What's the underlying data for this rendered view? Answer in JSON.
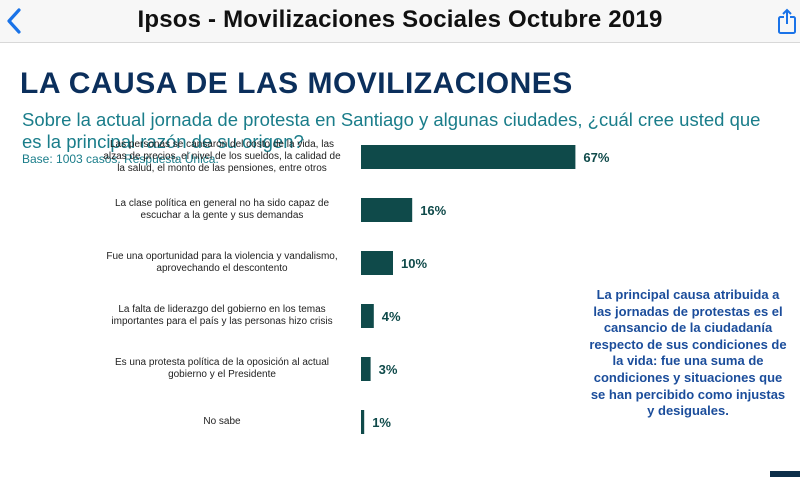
{
  "nav": {
    "title": "Ipsos - Movilizaciones Sociales Octubre 2019",
    "back_icon": "chevron-left-icon",
    "share_icon": "share-icon"
  },
  "slide": {
    "title": "LA CAUSA DE LAS MOVILIZACIONES",
    "question": "Sobre la actual jornada de protesta en Santiago y algunas ciudades, ¿cuál cree usted que es la principal razón de su origen?",
    "base": "Base: 1003 casos. Respuesta Única.",
    "callout": "La principal causa atribuida a las jornadas de protestas es el cansancio de la ciudadanía respecto de sus condiciones de la vida: fue una suma de condiciones y situaciones que se han percibido como injustas y desiguales."
  },
  "colors": {
    "bar": "#0f4a4a",
    "title": "#0b2f5c",
    "question": "#1a7d8a",
    "callout": "#1b4d9b"
  },
  "chart_data": {
    "type": "bar",
    "orientation": "horizontal",
    "categories": [
      "Las personas se cansaron del costo de la vida, las alzas de precios, el nivel de los sueldos, la calidad de la salud, el monto de las pensiones, entre otros",
      "La clase política en general no ha sido capaz de escuchar a la gente y sus demandas",
      "Fue una oportunidad para la violencia y vandalismo, aprovechando el descontento",
      "La falta de liderazgo del gobierno en los temas importantes para el país y las personas hizo crisis",
      "Es una protesta política de la oposición al actual gobierno y el Presidente",
      "No sabe"
    ],
    "label_lines": [
      [
        "Las personas se cansaron del costo de la vida, las",
        "alzas de precios, el nivel de los sueldos, la calidad de",
        "la salud, el monto de las pensiones, entre otros"
      ],
      [
        "La  clase política en general no ha sido capaz de",
        "escuchar a la gente y sus demandas"
      ],
      [
        "Fue una oportunidad para la violencia y vandalismo,",
        "aprovechando el descontento"
      ],
      [
        "La falta de liderazgo del gobierno en los temas",
        "importantes para el país y las personas hizo crisis"
      ],
      [
        "Es una protesta política de la oposición al actual",
        "gobierno y el Presidente"
      ],
      [
        "No sabe"
      ]
    ],
    "values": [
      67,
      16,
      10,
      4,
      3,
      1
    ],
    "value_labels": [
      "67%",
      "16%",
      "10%",
      "4%",
      "3%",
      "1%"
    ],
    "xlim": [
      0,
      100
    ]
  }
}
